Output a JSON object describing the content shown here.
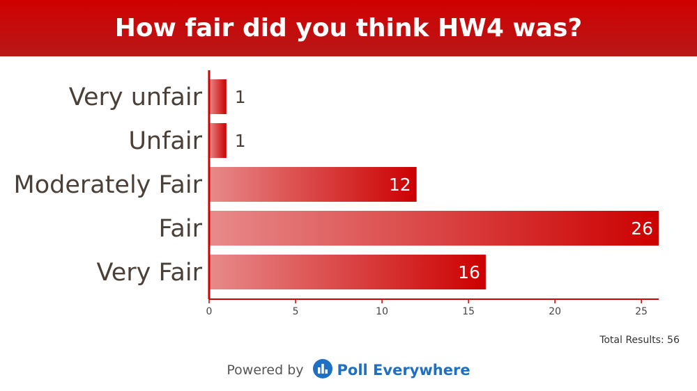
{
  "header": {
    "title": "How fair did you think HW4 was?"
  },
  "chart_data": {
    "type": "bar",
    "orientation": "horizontal",
    "title": "How fair did you think HW4 was?",
    "categories": [
      "Very unfair",
      "Unfair",
      "Moderately Fair",
      "Fair",
      "Very Fair"
    ],
    "values": [
      1,
      1,
      12,
      26,
      16
    ],
    "xlim": [
      0,
      26
    ],
    "xticks": [
      0,
      5,
      10,
      15,
      20,
      25
    ],
    "xlabel": "",
    "ylabel": "",
    "grid": false,
    "legend": "none",
    "colors": {
      "bar_start": "#e88a8a",
      "bar_end": "#cc0000",
      "axis": "#cc0000",
      "label": "#4a4038",
      "tick": "#444444"
    }
  },
  "summary": {
    "total_results": "Total Results: 56"
  },
  "footer": {
    "powered_by": "Powered by",
    "brand_name": "Poll Everywhere",
    "brand_icon": "poll-everywhere-logo-icon"
  },
  "theme": {
    "header_color": "#c80a0a",
    "brand_blue": "#1f6fc2"
  }
}
